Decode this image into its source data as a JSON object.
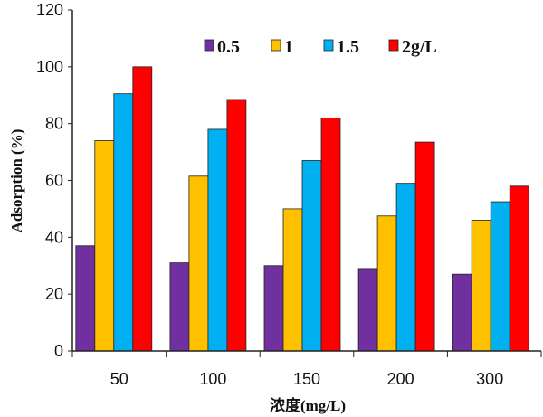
{
  "chart_data": {
    "type": "bar",
    "title": "",
    "xlabel": "浓度(mg/L)",
    "ylabel": "Adsorption (%)",
    "ylim": [
      0,
      120
    ],
    "yticks": [
      0,
      20,
      40,
      60,
      80,
      100,
      120
    ],
    "grid": false,
    "legend_position": "top",
    "categories": [
      "50",
      "100",
      "150",
      "200",
      "300"
    ],
    "series": [
      {
        "name": "0.5",
        "color": "#7030A0",
        "values": [
          37,
          31,
          30,
          29,
          27
        ]
      },
      {
        "name": "1",
        "color": "#FFC000",
        "values": [
          74,
          61.5,
          50,
          47.5,
          46
        ]
      },
      {
        "name": "1.5",
        "color": "#00B0F0",
        "values": [
          90.5,
          78,
          67,
          59,
          52.5
        ]
      },
      {
        "name": "2g/L",
        "color": "#FF0000",
        "values": [
          100,
          88.5,
          82,
          73.5,
          58
        ]
      }
    ]
  }
}
